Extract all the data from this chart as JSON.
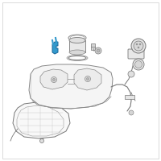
{
  "bg_color": "#ffffff",
  "line_color": "#888888",
  "highlight_color": "#3399cc",
  "dark_gray": "#777777",
  "thin_line": "#999999",
  "figsize": [
    2.0,
    2.0
  ],
  "dpi": 100
}
